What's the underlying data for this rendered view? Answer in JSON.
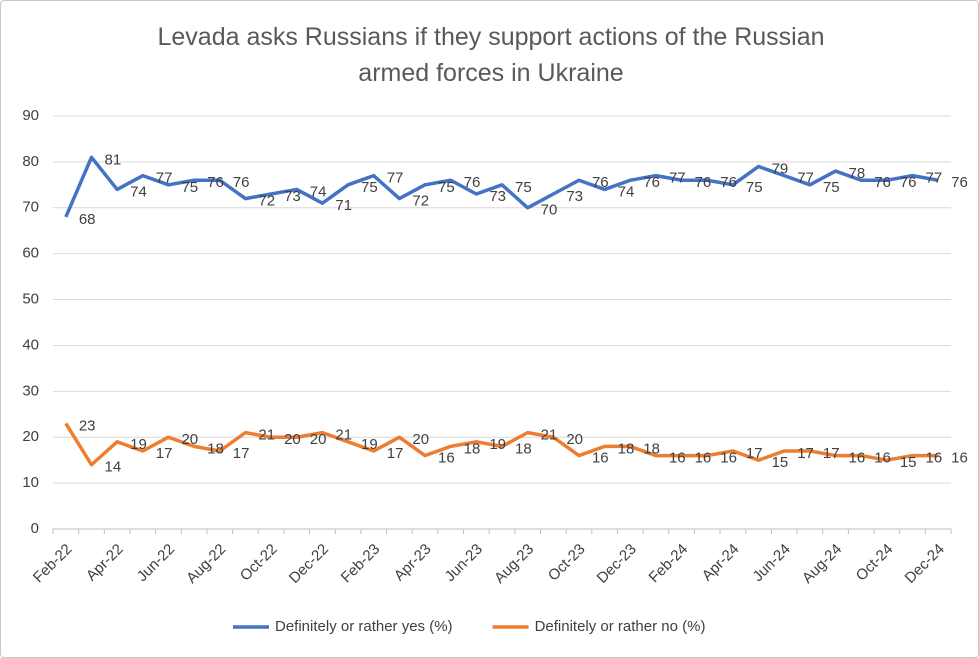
{
  "chart_data": {
    "type": "line",
    "title": "Levada asks Russians if they support actions of the Russian armed forces in Ukraine",
    "categories": [
      "Feb-22",
      null,
      "Apr-22",
      null,
      "Jun-22",
      null,
      "Aug-22",
      null,
      "Oct-22",
      null,
      "Dec-22",
      null,
      "Feb-23",
      null,
      "Apr-23",
      null,
      "Jun-23",
      null,
      "Aug-23",
      null,
      "Oct-23",
      null,
      "Dec-23",
      null,
      "Feb-24",
      null,
      "Apr-24",
      null,
      "Jun-24",
      null,
      "Aug-24",
      null,
      "Oct-24",
      null,
      "Dec-24"
    ],
    "series": [
      {
        "name": "Definitely or rather yes (%)",
        "color": "#4472c4",
        "values": [
          68,
          81,
          74,
          77,
          75,
          76,
          76,
          72,
          73,
          74,
          71,
          75,
          77,
          72,
          75,
          76,
          73,
          75,
          70,
          73,
          76,
          74,
          76,
          77,
          76,
          76,
          75,
          79,
          77,
          75,
          78,
          76,
          76,
          77,
          76
        ]
      },
      {
        "name": "Definitely or rather no (%)",
        "color": "#ed7d31",
        "values": [
          23,
          14,
          19,
          17,
          20,
          18,
          17,
          21,
          20,
          20,
          21,
          19,
          17,
          20,
          16,
          18,
          19,
          18,
          21,
          20,
          16,
          18,
          18,
          16,
          16,
          16,
          17,
          15,
          17,
          17,
          16,
          16,
          15,
          16,
          16
        ]
      }
    ],
    "ylim": [
      0,
      90
    ],
    "yticks": [
      0,
      10,
      20,
      30,
      40,
      50,
      60,
      70,
      80,
      90
    ],
    "grid": true,
    "legend": "bottom"
  }
}
